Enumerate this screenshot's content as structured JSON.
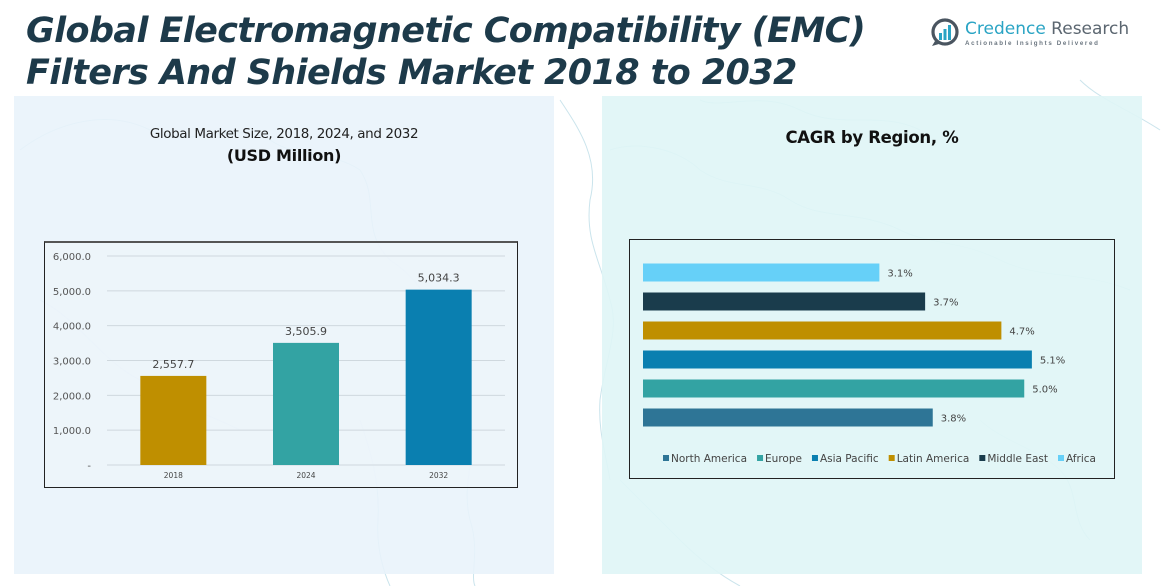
{
  "header": {
    "title_line1": "Global Electromagnetic Compatibility (EMC)",
    "title_line2": "Filters And Shields Market 2018 to 2032"
  },
  "logo": {
    "icon": "bar-chart-magnifier-icon",
    "name_part1": "Credence",
    "name_part2": " Research",
    "tagline": "Actionable Insights Delivered"
  },
  "colors": {
    "title": "#1d3a4a",
    "gold": "#bf8f00",
    "teal": "#33a3a3",
    "blue": "#0a7fb0",
    "dark_navy": "#1a3c4c",
    "light_blue": "#66d0f8",
    "steel_blue": "#2e7596"
  },
  "chart_data": [
    {
      "type": "bar",
      "title": "Global Market Size, 2018, 2024, and 2032",
      "subtitle": "(USD Million)",
      "categories": [
        "2018",
        "2024",
        "2032"
      ],
      "values": [
        2557.7,
        3505.9,
        5034.3
      ],
      "value_labels": [
        "2,557.7",
        "3,505.9",
        "5,034.3"
      ],
      "bar_colors": [
        "#bf8f00",
        "#33a3a3",
        "#0a7fb0"
      ],
      "ylim": [
        0,
        6000
      ],
      "yticks": [
        0,
        1000,
        2000,
        3000,
        4000,
        5000,
        6000
      ],
      "ytick_labels": [
        "-",
        "1,000.0",
        "2,000.0",
        "3,000.0",
        "4,000.0",
        "5,000.0",
        "6,000.0"
      ],
      "grid": true,
      "xlabel": "",
      "ylabel": ""
    },
    {
      "type": "bar",
      "orientation": "horizontal",
      "title": "CAGR by Region, %",
      "categories": [
        "North America",
        "Europe",
        "Asia Pacific",
        "Latin America",
        "Middle East",
        "Africa"
      ],
      "values": [
        3.8,
        5.0,
        5.1,
        4.7,
        3.7,
        3.1
      ],
      "value_labels": [
        "3.8%",
        "5.0%",
        "5.1%",
        "4.7%",
        "3.7%",
        "3.1%"
      ],
      "bar_colors": [
        "#2e7596",
        "#33a3a3",
        "#0a7fb0",
        "#bf8f00",
        "#1a3c4c",
        "#66d0f8"
      ],
      "order_bottom_to_top": true,
      "xlim": [
        0,
        5.6
      ],
      "grid": false,
      "legend": "bottom",
      "legend_entries": [
        "North America",
        "Europe",
        "Asia Pacific",
        "Latin America",
        "Middle East",
        "Africa"
      ]
    }
  ]
}
